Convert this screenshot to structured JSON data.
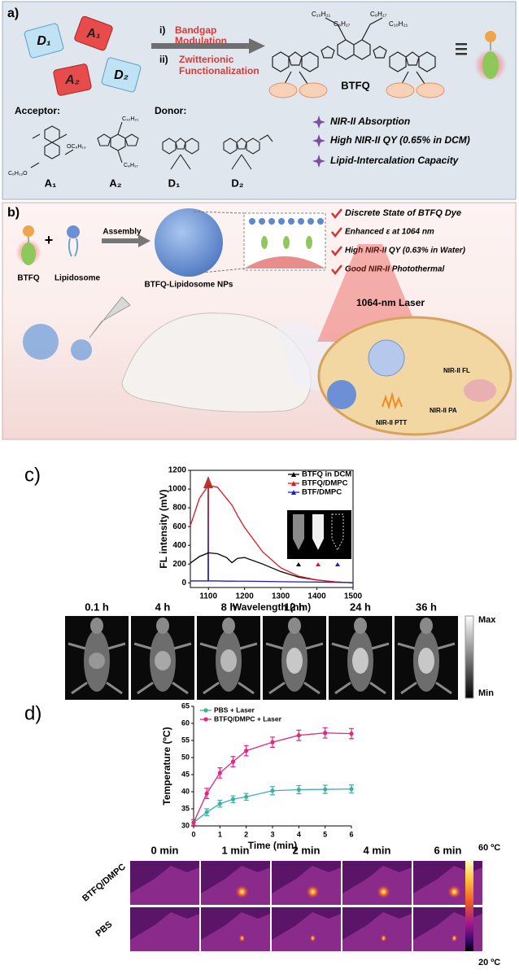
{
  "panel_a": {
    "label": "a)",
    "pieces": [
      "D₁",
      "A₁",
      "A₂",
      "D₂"
    ],
    "step1": {
      "num": "i)",
      "lines": [
        "Bandgap",
        "Modulation"
      ]
    },
    "step2": {
      "num": "ii)",
      "lines": [
        "Zwitterionic",
        "Functionalization"
      ]
    },
    "molecule_name": "BTFQ",
    "alkyl_chains": [
      "C₁₀H₂₁",
      "C₈H₁₇",
      "C₈H₁₇",
      "C₁₀H₂₁"
    ],
    "acceptor_label": "Acceptor:",
    "donor_label": "Donor:",
    "substituents": [
      "C₆H₁₃O",
      "OC₆H₁₃",
      "C₁₀H₂₁",
      "C₈H₁₇"
    ],
    "building_blocks": [
      "A₁",
      "A₂",
      "D₁",
      "D₂"
    ],
    "features": [
      "NIR-II Absorption",
      "High NIR-II QY (0.65% in DCM)",
      "Lipid-Intercalation Capacity"
    ]
  },
  "panel_b": {
    "label": "b)",
    "components": [
      "BTFQ",
      "Lipidosome"
    ],
    "step": "Assembly",
    "product": "BTFQ-Lipidosome NPs",
    "checks": [
      "Discrete State of BTFQ Dye",
      "Enhanced ε at 1064 nm",
      "High NIR-II QY (0.63% in Water)",
      "Good NIR-II Photothermal"
    ],
    "laser": "1064-nm Laser",
    "outputs": [
      "NIR-II FL",
      "NIR-II PA",
      "NIR-II PTT"
    ]
  },
  "chart_data": [
    {
      "type": "line",
      "panel_label": "c)",
      "xlabel": "Wavelength (nm)",
      "ylabel": "FL intensity (mV)",
      "x": [
        1050,
        1075,
        1100,
        1125,
        1150,
        1165,
        1180,
        1200,
        1250,
        1300,
        1350,
        1400,
        1450,
        1500
      ],
      "xlim": [
        1050,
        1500
      ],
      "xticks": [
        1100,
        1200,
        1300,
        1400,
        1500
      ],
      "ylim": [
        -50,
        1200
      ],
      "yticks": [
        0,
        200,
        400,
        600,
        800,
        1000,
        1200
      ],
      "legend": "upper right",
      "series": [
        {
          "name": "BTFQ in DCM",
          "color": "#000000",
          "marker": "triangle",
          "values": [
            210,
            280,
            320,
            310,
            270,
            215,
            260,
            270,
            200,
            120,
            60,
            30,
            10,
            0
          ]
        },
        {
          "name": "BTFQ/DMPC",
          "color": "#e8141b",
          "marker": "triangle",
          "values": [
            610,
            900,
            1040,
            1020,
            900,
            830,
            720,
            590,
            330,
            160,
            70,
            30,
            10,
            0
          ]
        },
        {
          "name": "BTF/DMPC",
          "color": "#1a1ad6",
          "marker": "triangle",
          "values": [
            20,
            20,
            20,
            20,
            18,
            18,
            17,
            17,
            15,
            12,
            10,
            8,
            5,
            2
          ]
        }
      ]
    },
    {
      "type": "line",
      "panel_label": "d)",
      "xlabel": "Time (min)",
      "ylabel": "Temperature (ºC)",
      "x": [
        0,
        0.5,
        1,
        1.5,
        2,
        3,
        4,
        5,
        6
      ],
      "xlim": [
        0,
        6
      ],
      "xticks": [
        0,
        1,
        2,
        3,
        4,
        5,
        6
      ],
      "ylim": [
        30,
        65
      ],
      "yticks": [
        30,
        35,
        40,
        45,
        50,
        55,
        60,
        65
      ],
      "legend": "upper left",
      "series": [
        {
          "name": "PBS + Laser",
          "color": "#3fb0a6",
          "marker": "circle",
          "values": [
            31,
            34,
            36.5,
            37.8,
            38.5,
            40.3,
            40.6,
            40.7,
            40.8
          ],
          "errors": [
            0.8,
            1,
            1,
            1,
            1,
            1.2,
            1.2,
            1.2,
            1.2
          ]
        },
        {
          "name": "BTFQ/DMPC + Laser",
          "color": "#e5267e",
          "marker": "circle",
          "values": [
            31,
            39.5,
            45.5,
            48.8,
            52,
            54.5,
            56.5,
            57.2,
            57
          ],
          "errors": [
            0.8,
            1.5,
            1.5,
            1.5,
            1.5,
            1.5,
            1.5,
            1.5,
            1.5
          ]
        }
      ]
    }
  ],
  "panel_c_images": {
    "times": [
      "0.1 h",
      "4 h",
      "8 h",
      "12 h",
      "24 h",
      "36 h"
    ],
    "scale_max": "Max",
    "scale_min": "Min"
  },
  "panel_d_images": {
    "times": [
      "0 min",
      "1 min",
      "2 min",
      "4 min",
      "6 min"
    ],
    "rows": [
      "BTFQ/DMPC",
      "PBS"
    ],
    "scale_max": "60 ºC",
    "scale_min": "20 ºC"
  }
}
